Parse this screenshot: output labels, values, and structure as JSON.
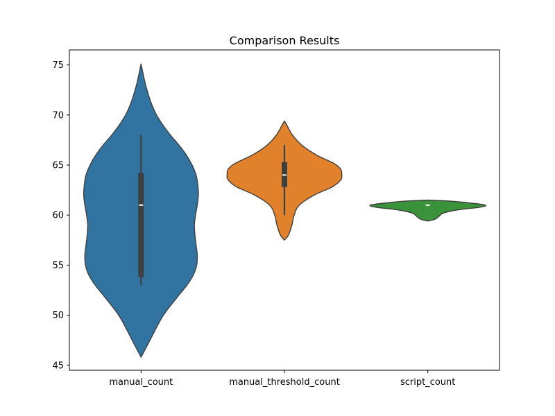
{
  "chart_data": {
    "type": "violin",
    "title": "Comparison Results",
    "xlabel": "",
    "ylabel": "",
    "ylim": [
      44.5,
      76.5
    ],
    "yticks": [
      45,
      50,
      55,
      60,
      65,
      70,
      75
    ],
    "grid": false,
    "categories": [
      "manual_count",
      "manual_threshold_count",
      "script_count"
    ],
    "series": [
      {
        "category": "manual_count",
        "color": "#3274a1",
        "whisker": [
          53,
          68
        ],
        "q1": 53.8,
        "median": 61,
        "q3": 64.2,
        "density": [
          [
            45.8,
            0.0
          ],
          [
            47,
            0.11
          ],
          [
            48,
            0.2
          ],
          [
            49,
            0.29
          ],
          [
            50,
            0.39
          ],
          [
            51,
            0.52
          ],
          [
            52,
            0.66
          ],
          [
            53,
            0.8
          ],
          [
            54,
            0.91
          ],
          [
            55,
            0.97
          ],
          [
            56,
            0.98
          ],
          [
            57,
            0.96
          ],
          [
            58,
            0.94
          ],
          [
            59,
            0.93
          ],
          [
            60,
            0.95
          ],
          [
            61,
            0.98
          ],
          [
            62,
            1.0
          ],
          [
            63,
            0.99
          ],
          [
            64,
            0.96
          ],
          [
            65,
            0.89
          ],
          [
            66,
            0.79
          ],
          [
            67,
            0.66
          ],
          [
            68,
            0.51
          ],
          [
            69,
            0.38
          ],
          [
            70,
            0.27
          ],
          [
            71,
            0.19
          ],
          [
            72,
            0.13
          ],
          [
            73,
            0.08
          ],
          [
            74,
            0.04
          ],
          [
            75.1,
            0.0
          ]
        ]
      },
      {
        "category": "manual_threshold_count",
        "color": "#e1812c",
        "whisker": [
          60,
          67
        ],
        "q1": 62.8,
        "median": 64,
        "q3": 65.3,
        "density": [
          [
            57.5,
            0.0
          ],
          [
            58,
            0.07
          ],
          [
            59,
            0.13
          ],
          [
            60,
            0.17
          ],
          [
            61,
            0.26
          ],
          [
            62,
            0.52
          ],
          [
            62.8,
            0.83
          ],
          [
            63.5,
            0.98
          ],
          [
            64,
            1.0
          ],
          [
            64.6,
            0.98
          ],
          [
            65.2,
            0.85
          ],
          [
            66,
            0.56
          ],
          [
            67,
            0.3
          ],
          [
            68,
            0.14
          ],
          [
            69,
            0.04
          ],
          [
            69.4,
            0.0
          ]
        ]
      },
      {
        "category": "script_count",
        "color": "#3a923a",
        "whisker": [
          61,
          61
        ],
        "q1": 61,
        "median": 61,
        "q3": 61,
        "density": [
          [
            59.4,
            0.0
          ],
          [
            59.6,
            0.13
          ],
          [
            59.9,
            0.2
          ],
          [
            60.2,
            0.27
          ],
          [
            60.5,
            0.5
          ],
          [
            60.8,
            0.92
          ],
          [
            61,
            1.0
          ],
          [
            61.2,
            0.75
          ],
          [
            61.4,
            0.37
          ],
          [
            61.5,
            0.0
          ]
        ]
      }
    ]
  }
}
